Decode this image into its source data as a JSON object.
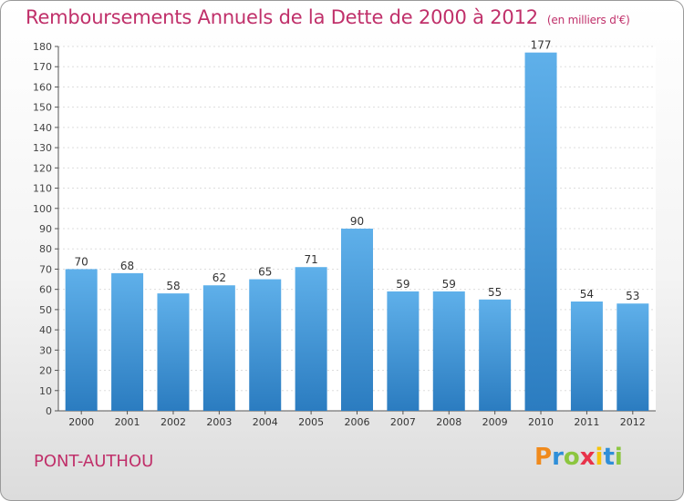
{
  "title": "Remboursements Annuels de la Dette de 2000 à 2012",
  "subtitle": "(en milliers d'€)",
  "commune": "PONT-AUTHOU",
  "brand": {
    "letters": [
      "P",
      "r",
      "o",
      "x",
      "i",
      "t",
      "i"
    ],
    "colors": [
      "#f08a1c",
      "#2f8fd8",
      "#8cc63f",
      "#e8334a",
      "#f6c40a",
      "#2f8fd8",
      "#8cc63f"
    ]
  },
  "colors": {
    "bar_top": "#5fb0ea",
    "bar_bottom": "#2b7cc0",
    "title": "#c0306a"
  },
  "chart_data": {
    "type": "bar",
    "categories": [
      "2000",
      "2001",
      "2002",
      "2003",
      "2004",
      "2005",
      "2006",
      "2007",
      "2008",
      "2009",
      "2010",
      "2011",
      "2012"
    ],
    "values": [
      70,
      68,
      58,
      62,
      65,
      71,
      90,
      59,
      59,
      55,
      177,
      54,
      53
    ],
    "title": "Remboursements Annuels de la Dette de 2000 à 2012",
    "subtitle": "(en milliers d'€)",
    "ylim": [
      0,
      180
    ],
    "yticks": [
      0,
      10,
      20,
      30,
      40,
      50,
      60,
      70,
      80,
      90,
      100,
      110,
      120,
      130,
      140,
      150,
      160,
      170,
      180
    ],
    "grid": true,
    "legend": "none"
  }
}
